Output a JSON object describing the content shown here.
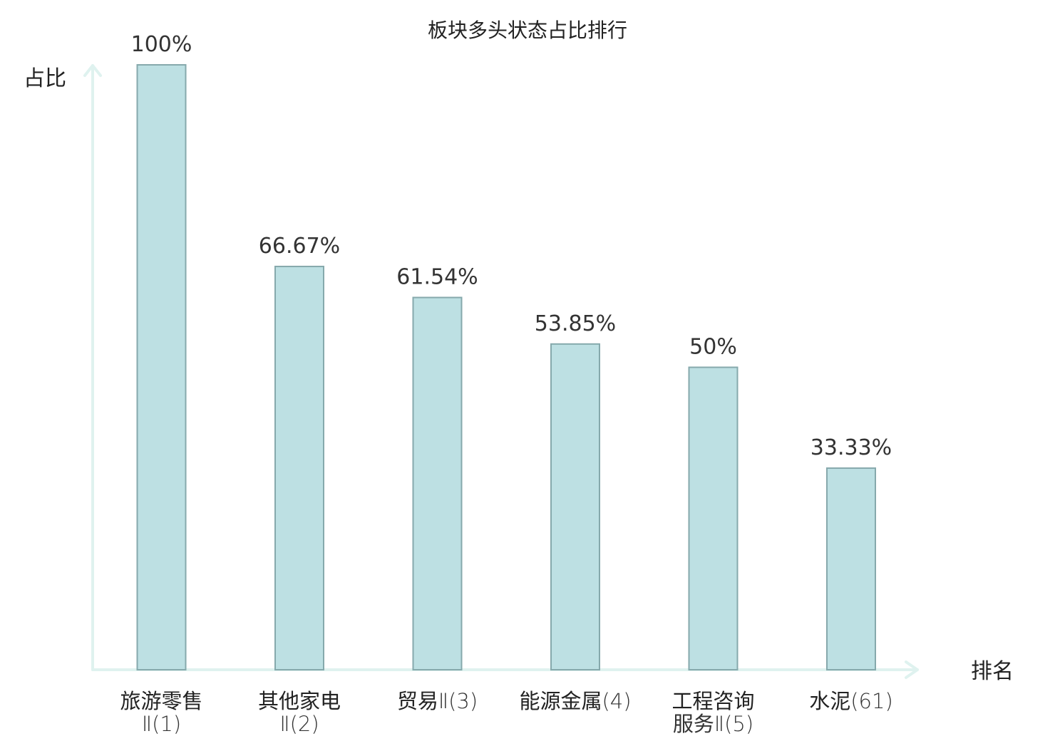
{
  "chart_data": {
    "type": "bar",
    "title": "板块多头状态占比排行",
    "ylabel": "占比",
    "xlabel": "排名",
    "ylim": [
      0,
      100
    ],
    "unit": "%",
    "categories": [
      {
        "main": "旅游零售",
        "sub": "Ⅱ(1)",
        "highlight": false
      },
      {
        "main": "其他家电",
        "sub": "Ⅱ(2)",
        "highlight": false
      },
      {
        "main": "贸易",
        "sub": "Ⅱ(3)",
        "highlight": false,
        "inline": true
      },
      {
        "main": "能源金属",
        "sub": "(4)",
        "highlight": false,
        "inline": true
      },
      {
        "main": "工程咨询",
        "sub": "服务Ⅱ(5)",
        "highlight": false
      },
      {
        "main": "水泥",
        "sub": "(61)",
        "highlight": true,
        "inline": true
      }
    ],
    "values": [
      100,
      66.67,
      61.54,
      53.85,
      50,
      33.33
    ],
    "value_labels": [
      "100%",
      "66.67%",
      "61.54%",
      "53.85%",
      "50%",
      "33.33%"
    ],
    "grid": false,
    "colors": {
      "bar_fill": "#bde0e3",
      "bar_stroke": "#86a9ac",
      "axis": "#dff2ef",
      "highlight_text": "#e02020"
    }
  }
}
